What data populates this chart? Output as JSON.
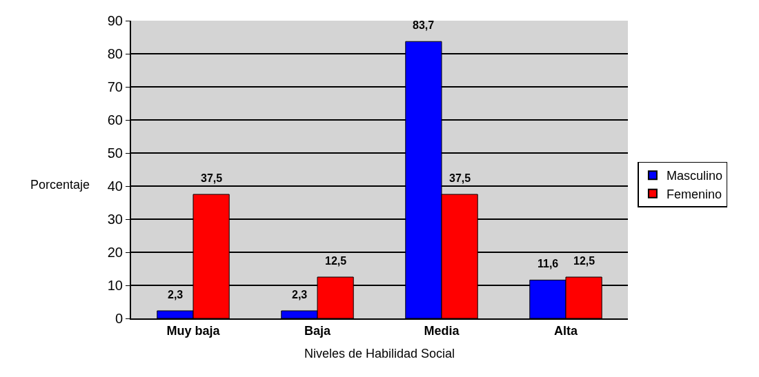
{
  "chart_data": {
    "type": "bar",
    "xlabel": "Niveles de Habilidad Social",
    "ylabel": "Porcentaje",
    "categories": [
      "Muy baja",
      "Baja",
      "Media",
      "Alta"
    ],
    "series": [
      {
        "name": "Masculino",
        "color": "#0000ff",
        "values": [
          2.3,
          2.3,
          83.7,
          11.6
        ],
        "value_labels": [
          "2,3",
          "2,3",
          "83,7",
          "11,6"
        ]
      },
      {
        "name": "Femenino",
        "color": "#ff0000",
        "values": [
          37.5,
          12.5,
          37.5,
          12.5
        ],
        "value_labels": [
          "37,5",
          "12,5",
          "37,5",
          "12,5"
        ]
      }
    ],
    "ylim": [
      0,
      90
    ],
    "yticks": [
      0,
      10,
      20,
      30,
      40,
      50,
      60,
      70,
      80,
      90
    ],
    "grid": "y",
    "legend": "right"
  }
}
